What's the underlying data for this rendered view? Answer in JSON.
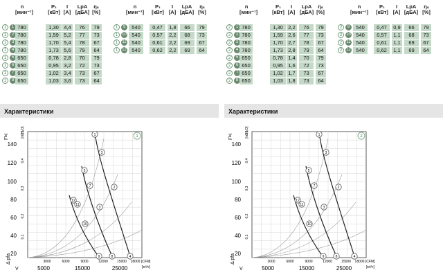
{
  "panels": [
    {
      "id": "1",
      "headers": {
        "n": "n",
        "n_unit": "[мин⁻¹]",
        "p": "P₁",
        "p_unit": "[кВт]",
        "i": "I",
        "i_unit": "[A]",
        "lpa": "LpA",
        "lpa_unit": "[дБА]",
        "eta": "ηₛ",
        "eta_unit": "[%]"
      },
      "rows_left": [
        {
          "id": "1",
          "n": "780",
          "p": "1,30",
          "i": "4,4",
          "lpa": "76",
          "eta": "79"
        },
        {
          "id": "2",
          "n": "780",
          "p": "1,59",
          "i": "5,2",
          "lpa": "77",
          "eta": "73"
        },
        {
          "id": "3",
          "n": "780",
          "p": "1,70",
          "i": "5,4",
          "lpa": "78",
          "eta": "67"
        },
        {
          "id": "4",
          "n": "780",
          "p": "1,73",
          "i": "5,6",
          "lpa": "79",
          "eta": "64"
        },
        {
          "id": "5",
          "n": "650",
          "p": "0,78",
          "i": "2,8",
          "lpa": "70",
          "eta": "79"
        },
        {
          "id": "6",
          "n": "650",
          "p": "0,95",
          "i": "3,2",
          "lpa": "72",
          "eta": "73"
        },
        {
          "id": "7",
          "n": "650",
          "p": "1,02",
          "i": "3,4",
          "lpa": "73",
          "eta": "67"
        },
        {
          "id": "8",
          "n": "650",
          "p": "1,03",
          "i": "3,6",
          "lpa": "73",
          "eta": "64"
        }
      ],
      "rows_right": [
        {
          "id": "9",
          "n": "540",
          "p": "0,47",
          "i": "1,8",
          "lpa": "66",
          "eta": "79"
        },
        {
          "id": "10",
          "n": "540",
          "p": "0,57",
          "i": "2,2",
          "lpa": "68",
          "eta": "73"
        },
        {
          "id": "11",
          "n": "540",
          "p": "0,61",
          "i": "2,2",
          "lpa": "69",
          "eta": "67"
        },
        {
          "id": "12",
          "n": "540",
          "p": "0,62",
          "i": "2,2",
          "lpa": "69",
          "eta": "64"
        }
      ]
    },
    {
      "id": "2",
      "headers": {
        "n": "n",
        "n_unit": "[мин⁻¹]",
        "p": "P₁",
        "p_unit": "[кВт]",
        "i": "I",
        "i_unit": "[A]",
        "lpa": "LpA",
        "lpa_unit": "[дБА]",
        "eta": "ηₛ",
        "eta_unit": "[%]"
      },
      "rows_left": [
        {
          "id": "1",
          "n": "780",
          "p": "1,30",
          "i": "2,2",
          "lpa": "76",
          "eta": "79"
        },
        {
          "id": "2",
          "n": "780",
          "p": "1,59",
          "i": "2,6",
          "lpa": "77",
          "eta": "73"
        },
        {
          "id": "3",
          "n": "780",
          "p": "1,70",
          "i": "2,7",
          "lpa": "78",
          "eta": "67"
        },
        {
          "id": "4",
          "n": "780",
          "p": "1,73",
          "i": "2,8",
          "lpa": "79",
          "eta": "64"
        },
        {
          "id": "5",
          "n": "650",
          "p": "0,78",
          "i": "1,4",
          "lpa": "70",
          "eta": "79"
        },
        {
          "id": "6",
          "n": "650",
          "p": "0,95",
          "i": "1,6",
          "lpa": "72",
          "eta": "73"
        },
        {
          "id": "7",
          "n": "650",
          "p": "1,02",
          "i": "1,7",
          "lpa": "73",
          "eta": "67"
        },
        {
          "id": "8",
          "n": "650",
          "p": "1,03",
          "i": "1,8",
          "lpa": "73",
          "eta": "64"
        }
      ],
      "rows_right": [
        {
          "id": "9",
          "n": "540",
          "p": "0,47",
          "i": "0,9",
          "lpa": "66",
          "eta": "79"
        },
        {
          "id": "10",
          "n": "540",
          "p": "0,57",
          "i": "1,1",
          "lpa": "68",
          "eta": "73"
        },
        {
          "id": "11",
          "n": "540",
          "p": "0,61",
          "i": "1,1",
          "lpa": "69",
          "eta": "67"
        },
        {
          "id": "12",
          "n": "540",
          "p": "0,62",
          "i": "1,1",
          "lpa": "69",
          "eta": "64"
        }
      ]
    }
  ],
  "section_title": "Характеристики",
  "chart": {
    "y_unit": "[Па]",
    "y2_unit": "[in H₂O]",
    "y_ticks": [
      "140",
      "120",
      "100",
      "80",
      "60",
      "40",
      "20"
    ],
    "y2_ticks": [
      "0,5",
      "0,4",
      "0,3",
      "0,2",
      "0,1"
    ],
    "x_ticks_cfm": [
      "3000",
      "6000",
      "9000",
      "12000",
      "15000",
      "18000 [CFM]"
    ],
    "x_ticks_m3h": [
      "5000",
      "15000",
      "25000"
    ],
    "x_unit": "[м³/ч]",
    "y_axis_label": "Δ pfa",
    "x_axis_label": "V"
  }
}
